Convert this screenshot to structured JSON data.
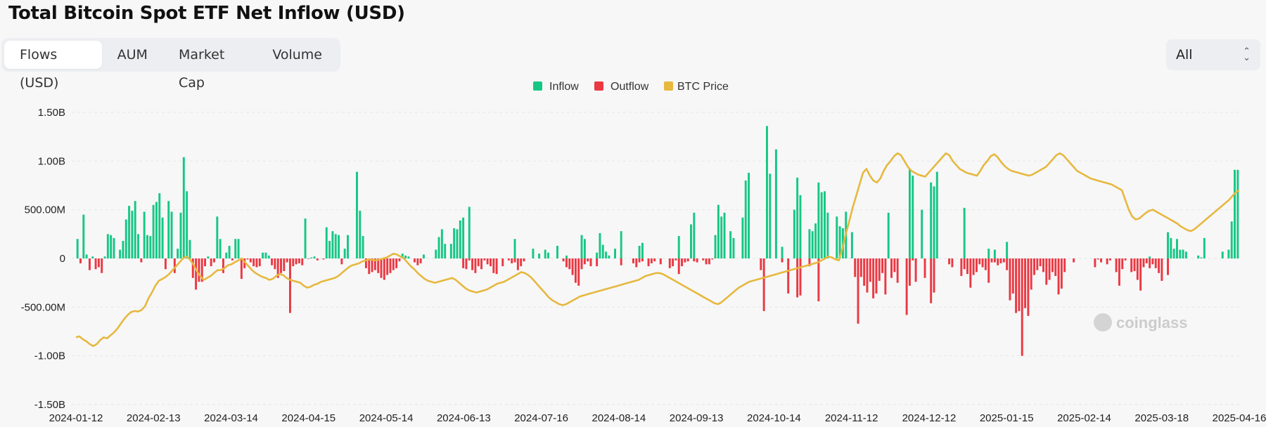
{
  "page": {
    "title": "Total Bitcoin Spot ETF Net Inflow (USD)",
    "tabs": [
      "Flows (USD)",
      "AUM",
      "Market Cap",
      "Volume"
    ],
    "active_tab": "Flows (USD)",
    "range_select": "All",
    "watermark": "coinglass"
  },
  "colors": {
    "inflow": "#16c784",
    "outflow": "#ea3943",
    "btc_price": "#e6b83e",
    "grid": "#e6e6e6"
  },
  "chart_data": {
    "type": "bar",
    "y_ticks": [
      "1.50B",
      "1.00B",
      "500.00M",
      "0",
      "-500.00M",
      "-1.00B",
      "-1.50B"
    ],
    "ylim": [
      -1500,
      1500
    ],
    "y_unit": "M USD",
    "x_ticks": [
      "2024-01-12",
      "2024-02-13",
      "2024-03-14",
      "2024-04-15",
      "2024-05-14",
      "2024-06-13",
      "2024-07-16",
      "2024-08-14",
      "2024-09-13",
      "2024-10-14",
      "2024-11-12",
      "2024-12-12",
      "2025-01-15",
      "2025-02-14",
      "2025-03-18",
      "2025-04-16"
    ],
    "legend": [
      "Inflow",
      "Outflow",
      "BTC Price"
    ],
    "grid": true,
    "series": [
      {
        "name": "Inflow",
        "values": [
          200,
          0,
          450,
          40,
          0,
          20,
          0,
          0,
          0,
          20,
          250,
          240,
          210,
          0,
          90,
          180,
          400,
          540,
          490,
          590,
          250,
          0,
          480,
          240,
          230,
          550,
          580,
          670,
          420,
          0,
          590,
          480,
          0,
          100,
          470,
          1040,
          690,
          190,
          0,
          0,
          0,
          0,
          0,
          20,
          0,
          0,
          430,
          200,
          0,
          60,
          130,
          0,
          200,
          200,
          0,
          0,
          0,
          0,
          0,
          0,
          0,
          60,
          60,
          30,
          0,
          0,
          0,
          0,
          0,
          0,
          0,
          0,
          0,
          0,
          0,
          410,
          0,
          10,
          20,
          0,
          0,
          0,
          320,
          180,
          280,
          250,
          240,
          0,
          100,
          240,
          0,
          0,
          890,
          490,
          230,
          0,
          0,
          0,
          0,
          0,
          0,
          0,
          0,
          0,
          0,
          0,
          0,
          50,
          30,
          20,
          0,
          0,
          0,
          0,
          40,
          0,
          0,
          0,
          90,
          220,
          300,
          150,
          0,
          150,
          310,
          300,
          390,
          420,
          0,
          530,
          0,
          0,
          0,
          0,
          0,
          0,
          0,
          0,
          0,
          0,
          0,
          0,
          0,
          0,
          200,
          0,
          0,
          0,
          0,
          0,
          100,
          0,
          50,
          0,
          90,
          60,
          0,
          0,
          130,
          0,
          0,
          30,
          0,
          0,
          0,
          0,
          240,
          200,
          0,
          0,
          0,
          60,
          260,
          140,
          70,
          30,
          0,
          100,
          0,
          280,
          0,
          0,
          0,
          0,
          0,
          130,
          160,
          0,
          0,
          0,
          0,
          0,
          0,
          0,
          0,
          0,
          0,
          0,
          230,
          0,
          0,
          0,
          350,
          470,
          0,
          0,
          0,
          0,
          0,
          0,
          240,
          550,
          430,
          470,
          0,
          280,
          210,
          0,
          0,
          420,
          800,
          880,
          0,
          0,
          0,
          0,
          0,
          1360,
          870,
          0,
          1120,
          0,
          120,
          0,
          0,
          0,
          500,
          830,
          650,
          0,
          0,
          300,
          280,
          360,
          780,
          680,
          690,
          470,
          0,
          0,
          430,
          330,
          310,
          480,
          0,
          270,
          0,
          0,
          0,
          0,
          0,
          0,
          0,
          0,
          0,
          0,
          0,
          470,
          0,
          0,
          0,
          0,
          0,
          0,
          920,
          850,
          0,
          0,
          500,
          0,
          0,
          780,
          740,
          890,
          0,
          0,
          0,
          0,
          0,
          0,
          0,
          0,
          520,
          0,
          0,
          0,
          0,
          0,
          0,
          0,
          100,
          0,
          90,
          0,
          0,
          0,
          170,
          0,
          0,
          0,
          0,
          0,
          0,
          0,
          0,
          0,
          0,
          0,
          0,
          0,
          0,
          0,
          0,
          0,
          0,
          0,
          0,
          0,
          0,
          0,
          0,
          0,
          0,
          0,
          0,
          0,
          0,
          0,
          0,
          0,
          0,
          0,
          0,
          0,
          0,
          0,
          0,
          0,
          0,
          0,
          0,
          0,
          0,
          20,
          0,
          0,
          0,
          0,
          0,
          270,
          210,
          100,
          200,
          90,
          90,
          70,
          0,
          0,
          0,
          30,
          10,
          210,
          0,
          0,
          0,
          0,
          0,
          70,
          0,
          90,
          380,
          910,
          910
        ]
      },
      {
        "name": "Outflow",
        "values": [
          0,
          -50,
          0,
          0,
          -120,
          0,
          -110,
          -90,
          -150,
          0,
          0,
          0,
          0,
          0,
          0,
          0,
          0,
          0,
          0,
          0,
          0,
          -40,
          0,
          0,
          0,
          0,
          0,
          0,
          0,
          -110,
          0,
          0,
          -150,
          0,
          0,
          0,
          0,
          0,
          -200,
          -320,
          -240,
          -240,
          -80,
          0,
          -80,
          -40,
          0,
          0,
          -150,
          0,
          0,
          -20,
          0,
          0,
          -210,
          -100,
          -10,
          -40,
          -80,
          -90,
          -80,
          0,
          0,
          0,
          -70,
          -110,
          -200,
          -150,
          -130,
          -40,
          -560,
          -80,
          -60,
          -50,
          -70,
          0,
          -5,
          0,
          0,
          -20,
          0,
          -10,
          0,
          0,
          0,
          0,
          0,
          -60,
          0,
          0,
          0,
          0,
          0,
          0,
          0,
          -100,
          -160,
          -140,
          -120,
          -150,
          -200,
          -220,
          -170,
          -150,
          -120,
          -100,
          -30,
          0,
          0,
          0,
          0,
          -40,
          -70,
          -50,
          0,
          0,
          0,
          0,
          0,
          0,
          0,
          0,
          0,
          0,
          0,
          0,
          0,
          -100,
          -110,
          -20,
          -120,
          -150,
          -80,
          -110,
          -20,
          -60,
          -80,
          -150,
          -160,
          0,
          -80,
          0,
          -20,
          -50,
          -40,
          -120,
          -80,
          -30,
          0,
          0,
          0,
          0,
          0,
          0,
          0,
          0,
          0,
          0,
          0,
          0,
          -30,
          -90,
          -110,
          -170,
          -250,
          -280,
          -110,
          -60,
          -30,
          -80,
          0,
          -80,
          0,
          0,
          0,
          0,
          0,
          0,
          0,
          -70,
          0,
          0,
          0,
          -50,
          -90,
          -40,
          -30,
          0,
          -80,
          -50,
          -30,
          0,
          -60,
          0,
          0,
          -100,
          -80,
          -20,
          -160,
          -80,
          -40,
          -30,
          0,
          -30,
          -40,
          0,
          -20,
          -60,
          -60,
          -10,
          0,
          0,
          0,
          0,
          0,
          0,
          0,
          0,
          0,
          0,
          0,
          0,
          0,
          0,
          0,
          -120,
          -540,
          0,
          0,
          0,
          0,
          0,
          -40,
          0,
          -360,
          0,
          0,
          -400,
          -380,
          0,
          0,
          -80,
          0,
          0,
          -440,
          0,
          0,
          0,
          0,
          0,
          0,
          0,
          0,
          0,
          0,
          0,
          -190,
          -670,
          -190,
          -280,
          -350,
          -240,
          -410,
          -360,
          -230,
          -150,
          -370,
          0,
          -200,
          -140,
          -250,
          0,
          0,
          -580,
          -280,
          -20,
          -240,
          0,
          0,
          -200,
          0,
          -460,
          -350,
          0,
          0,
          0,
          0,
          -60,
          -90,
          0,
          0,
          -180,
          -110,
          -160,
          -300,
          -170,
          -140,
          -60,
          -90,
          -120,
          -250,
          -40,
          -40,
          -70,
          -50,
          -40,
          -120,
          -430,
          -360,
          -560,
          -540,
          -1000,
          -510,
          -590,
          -320,
          -170,
          -120,
          -80,
          -140,
          -270,
          -220,
          -140,
          -180,
          -370,
          -310,
          -140,
          0,
          0,
          -40,
          0,
          0,
          0,
          0,
          0,
          0,
          -90,
          -10,
          -40,
          0,
          -60,
          -20,
          0,
          -140,
          -280,
          -110,
          -20,
          0,
          -140,
          -130,
          -220,
          -330,
          -90,
          -50,
          -100,
          -60,
          -100,
          -150,
          -230,
          0,
          -170,
          0,
          0,
          0,
          0
        ]
      },
      {
        "name": "BTC Price",
        "values": [
          -810,
          -800,
          -830,
          -850,
          -880,
          -900,
          -880,
          -840,
          -810,
          -820,
          -790,
          -760,
          -720,
          -670,
          -620,
          -580,
          -550,
          -540,
          -545,
          -530,
          -490,
          -410,
          -350,
          -280,
          -230,
          -210,
          -190,
          -160,
          -120,
          -80,
          -40,
          0,
          20,
          -10,
          -60,
          -130,
          -180,
          -220,
          -200,
          -180,
          -150,
          -120,
          -120,
          -100,
          -70,
          -60,
          -40,
          -20,
          0,
          -40,
          -80,
          -120,
          -150,
          -170,
          -190,
          -200,
          -220,
          -210,
          -180,
          -160,
          -170,
          -200,
          -220,
          -230,
          -240,
          -250,
          -280,
          -300,
          -290,
          -270,
          -260,
          -240,
          -230,
          -220,
          -210,
          -200,
          -180,
          -150,
          -120,
          -90,
          -70,
          -60,
          -50,
          -30,
          -20,
          -10,
          -15,
          -20,
          -10,
          0,
          10,
          30,
          50,
          40,
          20,
          0,
          -40,
          -80,
          -110,
          -150,
          -180,
          -210,
          -230,
          -240,
          -250,
          -240,
          -230,
          -220,
          -210,
          -200,
          -220,
          -250,
          -280,
          -310,
          -330,
          -340,
          -350,
          -340,
          -330,
          -320,
          -300,
          -280,
          -260,
          -250,
          -240,
          -220,
          -200,
          -180,
          -160,
          -140,
          -150,
          -170,
          -200,
          -240,
          -280,
          -320,
          -360,
          -400,
          -430,
          -450,
          -470,
          -480,
          -470,
          -450,
          -430,
          -410,
          -390,
          -380,
          -370,
          -360,
          -350,
          -340,
          -330,
          -320,
          -310,
          -300,
          -290,
          -280,
          -270,
          -260,
          -250,
          -240,
          -230,
          -220,
          -200,
          -180,
          -170,
          -160,
          -150,
          -150,
          -160,
          -180,
          -200,
          -220,
          -240,
          -260,
          -280,
          -300,
          -320,
          -340,
          -360,
          -380,
          -400,
          -420,
          -440,
          -460,
          -470,
          -450,
          -420,
          -390,
          -360,
          -330,
          -300,
          -280,
          -260,
          -240,
          -230,
          -220,
          -210,
          -200,
          -190,
          -180,
          -170,
          -160,
          -150,
          -140,
          -130,
          -120,
          -110,
          -100,
          -90,
          -80,
          -70,
          -60,
          -50,
          -40,
          -20,
          0,
          20,
          10,
          -10,
          -20,
          100,
          250,
          380,
          520,
          640,
          760,
          880,
          920,
          850,
          800,
          780,
          820,
          900,
          960,
          1000,
          1050,
          1080,
          1060,
          1000,
          940,
          900,
          880,
          860,
          850,
          840,
          880,
          920,
          960,
          1000,
          1040,
          1080,
          1060,
          1000,
          960,
          920,
          900,
          880,
          870,
          860,
          850,
          900,
          960,
          1000,
          1050,
          1070,
          1040,
          990,
          950,
          920,
          900,
          890,
          880,
          870,
          860,
          850,
          860,
          880,
          900,
          920,
          940,
          980,
          1020,
          1060,
          1080,
          1060,
          1020,
          980,
          940,
          900,
          880,
          860,
          840,
          820,
          810,
          800,
          790,
          780,
          770,
          760,
          740,
          720,
          700,
          600,
          500,
          430,
          400,
          410,
          440,
          470,
          490,
          500,
          480,
          460,
          440,
          420,
          400,
          380,
          360,
          330,
          310,
          290,
          280,
          300,
          330,
          360,
          390,
          420,
          450,
          480,
          510,
          540,
          570,
          600,
          640,
          680,
          700
        ]
      }
    ]
  }
}
